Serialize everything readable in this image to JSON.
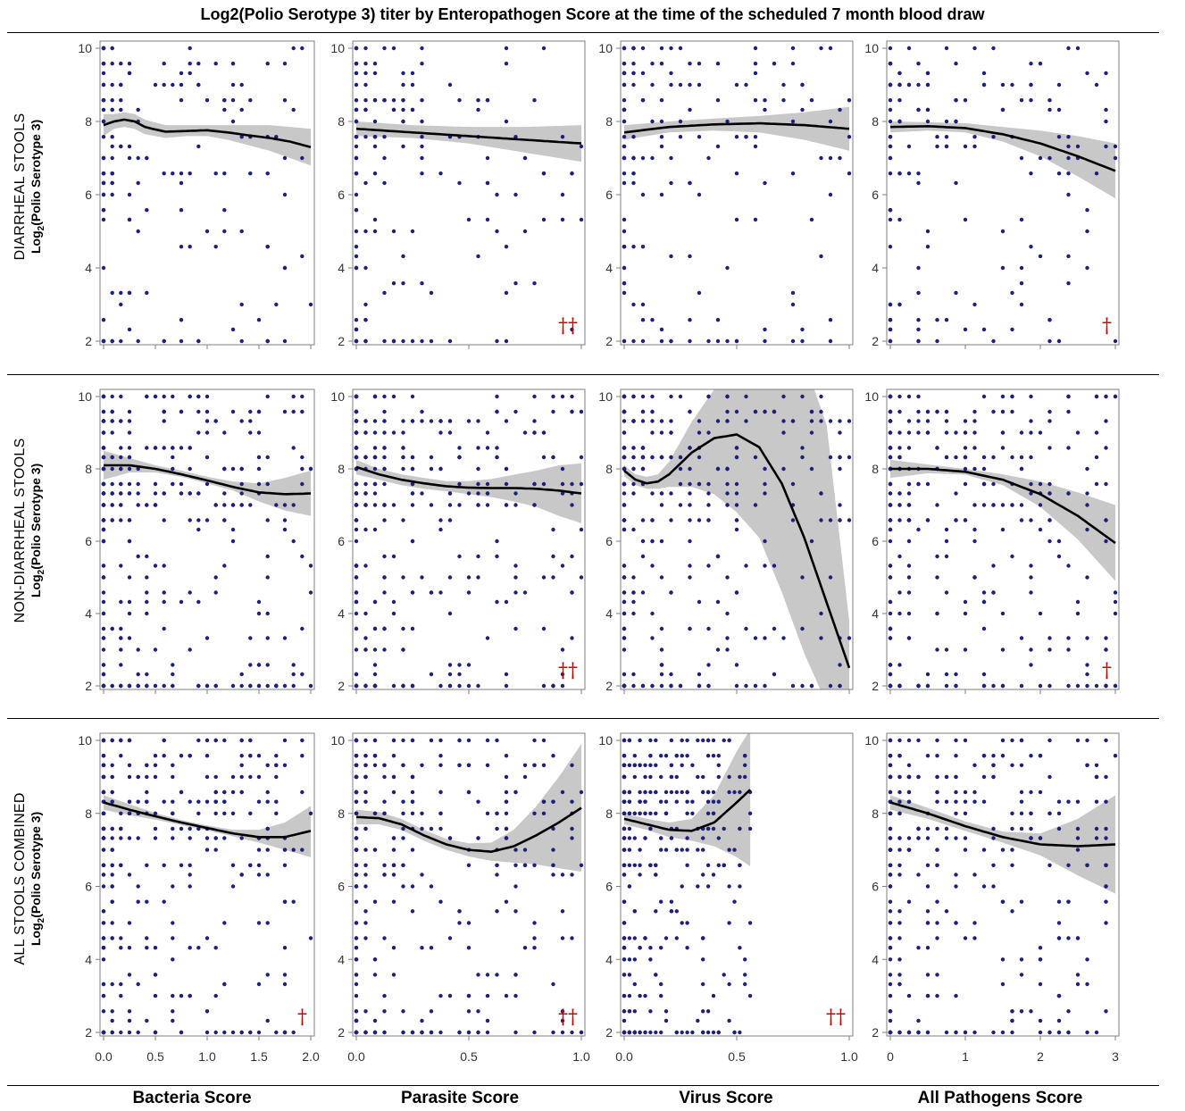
{
  "title": "Log2(Polio Serotype 3) titer by Enteropathogen Score at the time of the scheduled 7 month blood draw",
  "rows": [
    {
      "name": "DIARRHEAL STOOLS",
      "ylabel_pre": "Log",
      "ylabel_sub": "2",
      "ylabel_post": "(Polio Serotype 3)"
    },
    {
      "name": "NON-DIARRHEAL STOOLS",
      "ylabel_pre": "Log",
      "ylabel_sub": "2",
      "ylabel_post": "(Polio Serotype 3)"
    },
    {
      "name": "ALL STOOLS COMBINED",
      "ylabel_pre": "Log",
      "ylabel_sub": "2",
      "ylabel_post": "(Polio Serotype 3)"
    }
  ],
  "columns": [
    {
      "xlabel": "Bacteria Score",
      "xlim": [
        0,
        2.0
      ],
      "xticks": [
        "0.0",
        "0.5",
        "1.0",
        "1.5",
        "2.0"
      ],
      "xtick_values": [
        0,
        0.5,
        1.0,
        1.5,
        2.0
      ]
    },
    {
      "xlabel": "Parasite Score",
      "xlim": [
        0,
        1.0
      ],
      "xticks": [
        "0.0",
        "0.5",
        "1.0"
      ],
      "xtick_values": [
        0,
        0.5,
        1.0
      ]
    },
    {
      "xlabel": "Virus Score",
      "xlim": [
        0,
        1.0
      ],
      "xticks": [
        "0.0",
        "0.5",
        "1.0"
      ],
      "xtick_values": [
        0,
        0.5,
        1.0
      ]
    },
    {
      "xlabel": "All Pathogens Score",
      "xlim": [
        0,
        3
      ],
      "xticks": [
        "0",
        "1",
        "2",
        "3"
      ],
      "xtick_values": [
        0,
        1,
        2,
        3
      ]
    }
  ],
  "yticks": [
    "2",
    "4",
    "6",
    "8",
    "10"
  ],
  "ytick_values": [
    2,
    4,
    6,
    8,
    10
  ],
  "colors": {
    "points": "#1f1f7a",
    "fit": "#000000",
    "band": "#c8c8c8",
    "frame": "#7f7f7f",
    "dagger": "#c00000"
  },
  "chart_data": [
    {
      "type": "scatter",
      "row": "DIARRHEAL STOOLS",
      "xlabel": "Bacteria Score",
      "ylabel": "Log2(Polio Serotype 3)",
      "xlim": [
        0,
        2.0
      ],
      "ylim": [
        2,
        10
      ],
      "marker": "",
      "fit": {
        "x": [
          0,
          0.1,
          0.2,
          0.3,
          0.4,
          0.5,
          0.6,
          0.8,
          1.0,
          1.2,
          1.4,
          1.6,
          1.8,
          2.0
        ],
        "y": [
          7.9,
          8.0,
          8.05,
          8.0,
          7.85,
          7.78,
          7.72,
          7.74,
          7.76,
          7.7,
          7.62,
          7.55,
          7.45,
          7.3
        ]
      },
      "band": {
        "lower": [
          7.6,
          7.8,
          7.85,
          7.8,
          7.65,
          7.6,
          7.55,
          7.6,
          7.6,
          7.5,
          7.35,
          7.2,
          7.0,
          6.8
        ],
        "upper": [
          8.2,
          8.2,
          8.25,
          8.2,
          8.05,
          7.97,
          7.9,
          7.9,
          7.9,
          7.9,
          7.9,
          7.9,
          7.85,
          7.8
        ]
      }
    },
    {
      "type": "scatter",
      "row": "DIARRHEAL STOOLS",
      "xlabel": "Parasite Score",
      "ylabel": "Log2(Polio Serotype 3)",
      "xlim": [
        0,
        1.0
      ],
      "ylim": [
        2,
        10
      ],
      "marker": "††",
      "fit": {
        "x": [
          0,
          0.25,
          0.5,
          0.75,
          1.0
        ],
        "y": [
          7.8,
          7.7,
          7.6,
          7.5,
          7.4
        ]
      },
      "band": {
        "lower": [
          7.6,
          7.55,
          7.4,
          7.15,
          6.9
        ],
        "upper": [
          8.0,
          7.9,
          7.85,
          7.85,
          7.9
        ]
      }
    },
    {
      "type": "scatter",
      "row": "DIARRHEAL STOOLS",
      "xlabel": "Virus Score",
      "ylabel": "Log2(Polio Serotype 3)",
      "xlim": [
        0,
        1.0
      ],
      "ylim": [
        2,
        10
      ],
      "marker": "",
      "fit": {
        "x": [
          0,
          0.2,
          0.4,
          0.6,
          0.8,
          1.0
        ],
        "y": [
          7.7,
          7.85,
          7.92,
          7.95,
          7.9,
          7.8
        ]
      },
      "band": {
        "lower": [
          7.5,
          7.7,
          7.75,
          7.7,
          7.5,
          7.2
        ],
        "upper": [
          7.9,
          8.0,
          8.08,
          8.15,
          8.25,
          8.4
        ]
      }
    },
    {
      "type": "scatter",
      "row": "DIARRHEAL STOOLS",
      "xlabel": "All Pathogens Score",
      "ylabel": "Log2(Polio Serotype 3)",
      "xlim": [
        0,
        3
      ],
      "ylim": [
        2,
        10
      ],
      "marker": "†",
      "fit": {
        "x": [
          0,
          0.5,
          1.0,
          1.5,
          2.0,
          2.5,
          3.0
        ],
        "y": [
          7.85,
          7.87,
          7.82,
          7.65,
          7.4,
          7.05,
          6.65
        ]
      },
      "band": {
        "lower": [
          7.7,
          7.75,
          7.7,
          7.45,
          7.05,
          6.5,
          5.9
        ],
        "upper": [
          8.0,
          7.98,
          7.95,
          7.85,
          7.75,
          7.6,
          7.4
        ]
      }
    },
    {
      "type": "scatter",
      "row": "NON-DIARRHEAL STOOLS",
      "xlabel": "Bacteria Score",
      "ylabel": "Log2(Polio Serotype 3)",
      "xlim": [
        0,
        2.0
      ],
      "ylim": [
        2,
        10
      ],
      "marker": "",
      "fit": {
        "x": [
          0,
          0.25,
          0.5,
          0.75,
          1.0,
          1.25,
          1.5,
          1.75,
          2.0
        ],
        "y": [
          8.1,
          8.1,
          8.0,
          7.85,
          7.68,
          7.5,
          7.35,
          7.3,
          7.32
        ]
      },
      "band": {
        "lower": [
          7.7,
          7.9,
          7.9,
          7.78,
          7.6,
          7.4,
          7.1,
          6.85,
          6.7
        ],
        "upper": [
          8.5,
          8.3,
          8.1,
          7.95,
          7.78,
          7.65,
          7.6,
          7.75,
          7.95
        ]
      }
    },
    {
      "type": "scatter",
      "row": "NON-DIARRHEAL STOOLS",
      "xlabel": "Parasite Score",
      "ylabel": "Log2(Polio Serotype 3)",
      "xlim": [
        0,
        1.0
      ],
      "ylim": [
        2,
        10
      ],
      "marker": "††",
      "fit": {
        "x": [
          0,
          0.1,
          0.2,
          0.3,
          0.4,
          0.5,
          0.6,
          0.7,
          0.8,
          0.9,
          1.0
        ],
        "y": [
          8.05,
          7.85,
          7.7,
          7.6,
          7.52,
          7.48,
          7.47,
          7.47,
          7.45,
          7.4,
          7.32
        ]
      },
      "band": {
        "lower": [
          7.85,
          7.7,
          7.55,
          7.45,
          7.38,
          7.3,
          7.22,
          7.1,
          6.95,
          6.7,
          6.5
        ],
        "upper": [
          8.25,
          8.0,
          7.85,
          7.75,
          7.66,
          7.66,
          7.72,
          7.84,
          7.95,
          8.1,
          8.15
        ]
      }
    },
    {
      "type": "scatter",
      "row": "NON-DIARRHEAL STOOLS",
      "xlabel": "Virus Score",
      "ylabel": "Log2(Polio Serotype 3)",
      "xlim": [
        0,
        1.0
      ],
      "ylim": [
        2,
        10
      ],
      "marker": "",
      "fit": {
        "x": [
          0,
          0.05,
          0.1,
          0.15,
          0.2,
          0.3,
          0.4,
          0.5,
          0.6,
          0.7,
          0.8,
          0.9,
          1.0
        ],
        "y": [
          7.95,
          7.7,
          7.6,
          7.65,
          7.85,
          8.45,
          8.85,
          8.95,
          8.6,
          7.6,
          6.1,
          4.3,
          2.5
        ]
      },
      "band": {
        "lower": [
          7.8,
          7.55,
          7.45,
          7.45,
          7.5,
          7.5,
          7.3,
          6.8,
          6.1,
          4.6,
          2.9,
          1.5,
          1.5
        ],
        "upper": [
          8.1,
          7.85,
          7.78,
          7.85,
          8.2,
          9.3,
          10.2,
          10.8,
          11,
          11,
          11,
          9.2,
          3.8
        ]
      }
    },
    {
      "type": "scatter",
      "row": "NON-DIARRHEAL STOOLS",
      "xlabel": "All Pathogens Score",
      "ylabel": "Log2(Polio Serotype 3)",
      "xlim": [
        0,
        3
      ],
      "ylim": [
        2,
        10
      ],
      "marker": "†",
      "fit": {
        "x": [
          0,
          0.5,
          1.0,
          1.5,
          2.0,
          2.5,
          3.0
        ],
        "y": [
          8.0,
          8.0,
          7.92,
          7.7,
          7.3,
          6.7,
          5.95
        ]
      },
      "band": {
        "lower": [
          7.75,
          7.88,
          7.84,
          7.55,
          6.95,
          6.05,
          4.9
        ],
        "upper": [
          8.25,
          8.12,
          8.0,
          7.85,
          7.65,
          7.35,
          7.0
        ]
      }
    },
    {
      "type": "scatter",
      "row": "ALL STOOLS COMBINED",
      "xlabel": "Bacteria Score",
      "ylabel": "Log2(Polio Serotype 3)",
      "xlim": [
        0,
        2.0
      ],
      "ylim": [
        2,
        10
      ],
      "marker": "†",
      "fit": {
        "x": [
          0,
          0.25,
          0.5,
          0.75,
          1.0,
          1.25,
          1.5,
          1.75,
          2.0
        ],
        "y": [
          8.3,
          8.1,
          7.92,
          7.75,
          7.6,
          7.45,
          7.35,
          7.35,
          7.52
        ]
      },
      "band": {
        "lower": [
          8.1,
          7.95,
          7.83,
          7.68,
          7.53,
          7.37,
          7.2,
          7.0,
          6.8
        ],
        "upper": [
          8.5,
          8.25,
          8.01,
          7.82,
          7.67,
          7.55,
          7.55,
          7.75,
          8.2
        ]
      }
    },
    {
      "type": "scatter",
      "row": "ALL STOOLS COMBINED",
      "xlabel": "Parasite Score",
      "ylabel": "Log2(Polio Serotype 3)",
      "xlim": [
        0,
        1.0
      ],
      "ylim": [
        2,
        10
      ],
      "marker": "††",
      "fit": {
        "x": [
          0,
          0.1,
          0.2,
          0.3,
          0.4,
          0.5,
          0.6,
          0.7,
          0.8,
          0.9,
          1.0
        ],
        "y": [
          7.9,
          7.87,
          7.7,
          7.4,
          7.15,
          7.0,
          6.95,
          7.1,
          7.4,
          7.75,
          8.15
        ]
      },
      "band": {
        "lower": [
          7.7,
          7.7,
          7.55,
          7.25,
          7.0,
          6.82,
          6.7,
          6.65,
          6.6,
          6.5,
          6.4
        ],
        "upper": [
          8.1,
          8.04,
          7.85,
          7.55,
          7.3,
          7.18,
          7.2,
          7.55,
          8.2,
          9.0,
          9.9
        ]
      }
    },
    {
      "type": "scatter",
      "row": "ALL STOOLS COMBINED",
      "xlabel": "Virus Score",
      "ylabel": "Log2(Polio Serotype 3)",
      "xlim": [
        0,
        1.0
      ],
      "ylim": [
        2,
        10
      ],
      "marker": "††",
      "fit": {
        "x": [
          0,
          0.1,
          0.2,
          0.3,
          0.4,
          0.5,
          0.56
        ],
        "y": [
          7.85,
          7.7,
          7.55,
          7.52,
          7.75,
          8.3,
          8.65
        ]
      },
      "band": {
        "lower": [
          7.7,
          7.55,
          7.35,
          7.25,
          7.1,
          6.8,
          6.55
        ],
        "upper": [
          8.0,
          7.85,
          7.75,
          7.85,
          8.5,
          9.7,
          10.3
        ]
      }
    },
    {
      "type": "scatter",
      "row": "ALL STOOLS COMBINED",
      "xlabel": "All Pathogens Score",
      "ylabel": "Log2(Polio Serotype 3)",
      "xlim": [
        0,
        3
      ],
      "ylim": [
        2,
        10
      ],
      "marker": "",
      "fit": {
        "x": [
          0,
          0.5,
          1.0,
          1.5,
          2.0,
          2.5,
          3.0
        ],
        "y": [
          8.3,
          8.0,
          7.65,
          7.35,
          7.15,
          7.1,
          7.15
        ]
      },
      "band": {
        "lower": [
          8.1,
          7.85,
          7.52,
          7.2,
          6.85,
          6.3,
          5.8
        ],
        "upper": [
          8.5,
          8.15,
          7.78,
          7.5,
          7.45,
          7.85,
          8.5
        ]
      }
    }
  ]
}
